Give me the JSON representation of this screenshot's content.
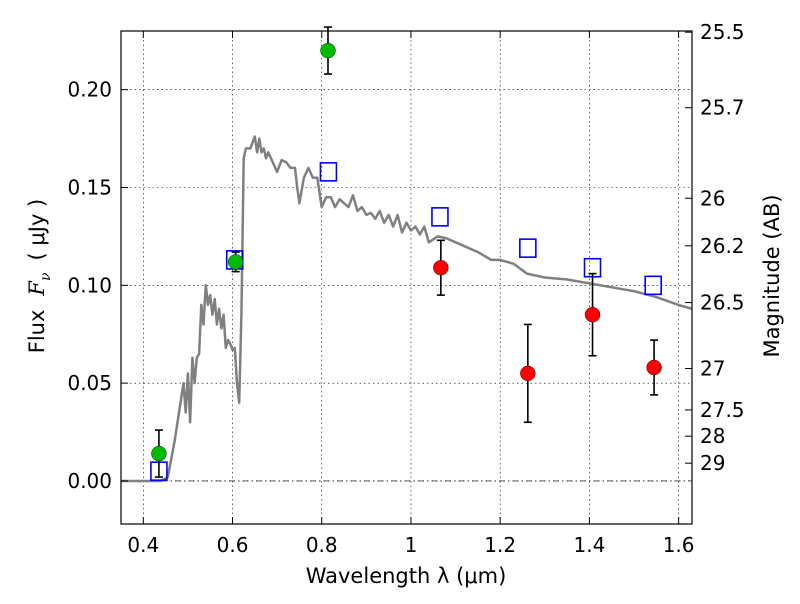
{
  "chart_data": {
    "type": "scatter",
    "xlabel": "Wavelength  λ (μm)",
    "ylabel": "Flux  F_ν  ( μJy )",
    "ylabel_parts": {
      "prefix": "Flux",
      "symbol": "F",
      "subscript": "ν",
      "units": "( μJy )"
    },
    "y2label": "Magnitude (AB)",
    "xlim": [
      0.35,
      1.63
    ],
    "ylim": [
      -0.022,
      0.23
    ],
    "grid": true,
    "x_ticks": [
      {
        "value": 0.4,
        "label": "0.4"
      },
      {
        "value": 0.6,
        "label": "0.6"
      },
      {
        "value": 0.8,
        "label": "0.8"
      },
      {
        "value": 1.0,
        "label": "1"
      },
      {
        "value": 1.2,
        "label": "1.2"
      },
      {
        "value": 1.4,
        "label": "1.4"
      },
      {
        "value": 1.6,
        "label": "1.6"
      }
    ],
    "y_ticks": [
      {
        "value": 0.0,
        "label": "0.00"
      },
      {
        "value": 0.05,
        "label": "0.05"
      },
      {
        "value": 0.1,
        "label": "0.10"
      },
      {
        "value": 0.15,
        "label": "0.15"
      },
      {
        "value": 0.2,
        "label": "0.20"
      }
    ],
    "mag_ticks": [
      {
        "flux": 0.2294,
        "label": "25.5"
      },
      {
        "flux": 0.1908,
        "label": "25.7"
      },
      {
        "flux": 0.1445,
        "label": "26"
      },
      {
        "flux": 0.1202,
        "label": "26.2"
      },
      {
        "flux": 0.0912,
        "label": "26.5"
      },
      {
        "flux": 0.0575,
        "label": "27"
      },
      {
        "flux": 0.0363,
        "label": "27.5"
      },
      {
        "flux": 0.0229,
        "label": "28"
      },
      {
        "flux": 0.0091,
        "label": "29"
      }
    ],
    "zero_line": true,
    "series": [
      {
        "kind": "line",
        "color": "#808080",
        "x": [
          0.35,
          0.44,
          0.455,
          0.47,
          0.48,
          0.49,
          0.495,
          0.5,
          0.505,
          0.51,
          0.515,
          0.52,
          0.525,
          0.53,
          0.535,
          0.54,
          0.545,
          0.55,
          0.555,
          0.56,
          0.565,
          0.57,
          0.575,
          0.58,
          0.585,
          0.59,
          0.595,
          0.6,
          0.605,
          0.61,
          0.615,
          0.62,
          0.625,
          0.63,
          0.64,
          0.65,
          0.655,
          0.66,
          0.665,
          0.67,
          0.675,
          0.68,
          0.69,
          0.7,
          0.71,
          0.72,
          0.73,
          0.74,
          0.745,
          0.75,
          0.76,
          0.77,
          0.78,
          0.79,
          0.8,
          0.81,
          0.82,
          0.83,
          0.84,
          0.85,
          0.86,
          0.87,
          0.88,
          0.89,
          0.9,
          0.91,
          0.92,
          0.93,
          0.94,
          0.95,
          0.96,
          0.97,
          0.98,
          0.99,
          1.0,
          1.01,
          1.02,
          1.03,
          1.04,
          1.06,
          1.08,
          1.1,
          1.15,
          1.18,
          1.2,
          1.23,
          1.26,
          1.3,
          1.35,
          1.4,
          1.45,
          1.5,
          1.55,
          1.6,
          1.63
        ],
        "y": [
          0.0,
          0.0,
          0.002,
          0.02,
          0.035,
          0.05,
          0.035,
          0.055,
          0.03,
          0.063,
          0.05,
          0.063,
          0.065,
          0.09,
          0.08,
          0.1,
          0.09,
          0.095,
          0.085,
          0.093,
          0.08,
          0.088,
          0.078,
          0.085,
          0.068,
          0.072,
          0.07,
          0.067,
          0.068,
          0.05,
          0.04,
          0.085,
          0.165,
          0.17,
          0.17,
          0.176,
          0.168,
          0.175,
          0.168,
          0.17,
          0.165,
          0.168,
          0.163,
          0.158,
          0.164,
          0.163,
          0.16,
          0.16,
          0.15,
          0.142,
          0.155,
          0.16,
          0.155,
          0.155,
          0.14,
          0.145,
          0.145,
          0.14,
          0.144,
          0.142,
          0.14,
          0.146,
          0.138,
          0.14,
          0.136,
          0.137,
          0.134,
          0.138,
          0.132,
          0.136,
          0.13,
          0.136,
          0.127,
          0.132,
          0.128,
          0.13,
          0.126,
          0.13,
          0.122,
          0.125,
          0.124,
          0.122,
          0.117,
          0.113,
          0.113,
          0.111,
          0.106,
          0.104,
          0.103,
          0.101,
          0.099,
          0.097,
          0.094,
          0.09,
          0.088
        ]
      },
      {
        "kind": "markers",
        "marker": "square-open",
        "color": "#0000ff",
        "x": [
          0.435,
          0.605,
          0.815,
          1.065,
          1.262,
          1.407,
          1.543
        ],
        "y": [
          0.005,
          0.113,
          0.158,
          0.135,
          0.119,
          0.109,
          0.1
        ]
      },
      {
        "kind": "markers",
        "marker": "circle",
        "color": "#00bb00",
        "x": [
          0.435,
          0.607,
          0.814
        ],
        "y": [
          0.014,
          0.112,
          0.22
        ],
        "yerr": [
          0.012,
          0.005,
          0.012
        ]
      },
      {
        "kind": "markers",
        "marker": "circle",
        "color": "#ff0000",
        "x": [
          1.067,
          1.262,
          1.407,
          1.545
        ],
        "y": [
          0.109,
          0.055,
          0.085,
          0.058
        ],
        "yerr": [
          0.014,
          0.025,
          0.021,
          0.014
        ]
      }
    ]
  }
}
